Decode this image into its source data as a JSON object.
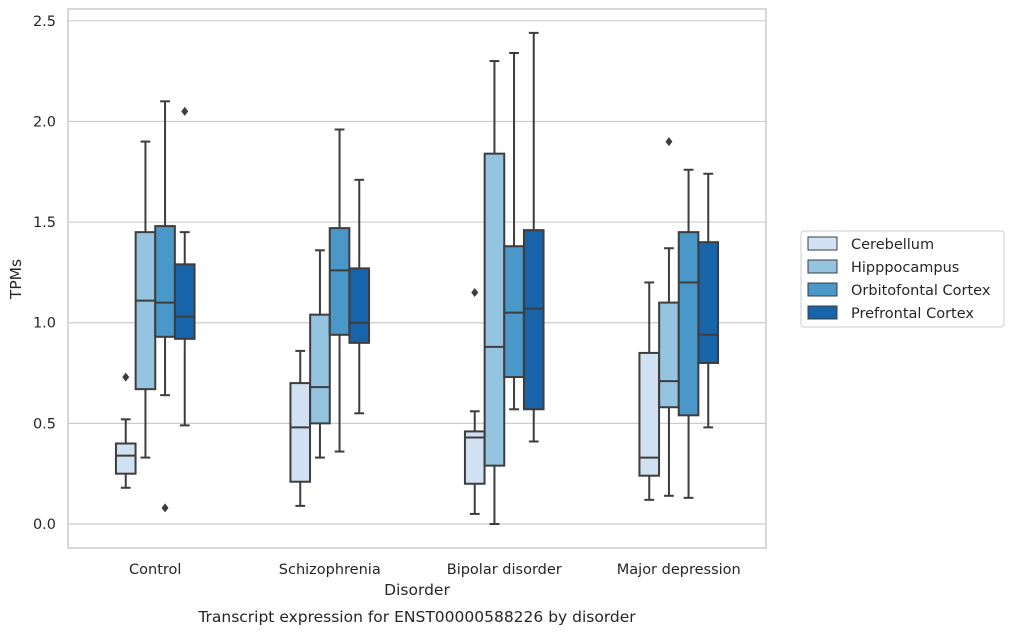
{
  "chart_data": {
    "type": "box",
    "title": "",
    "caption": "Transcript expression for ENST00000588226 by disorder",
    "xlabel": "Disorder",
    "ylabel": "TPMs",
    "ylim": [
      -0.12,
      2.56
    ],
    "yticks": [
      "0.0",
      "0.5",
      "1.0",
      "1.5",
      "2.0",
      "2.5"
    ],
    "grid": true,
    "legend_position": "right",
    "categories": [
      "Control",
      "Schizophrenia",
      "Bipolar disorder",
      "Major depression"
    ],
    "series": [
      {
        "name": "Cerebellum",
        "color": "#d0e1f2",
        "boxes": [
          {
            "whislo": 0.18,
            "q1": 0.25,
            "med": 0.34,
            "q3": 0.4,
            "whishi": 0.52,
            "fliers": [
              0.73
            ]
          },
          {
            "whislo": 0.09,
            "q1": 0.21,
            "med": 0.48,
            "q3": 0.7,
            "whishi": 0.86,
            "fliers": []
          },
          {
            "whislo": 0.05,
            "q1": 0.2,
            "med": 0.43,
            "q3": 0.46,
            "whishi": 0.56,
            "fliers": [
              1.15
            ]
          },
          {
            "whislo": 0.12,
            "q1": 0.24,
            "med": 0.33,
            "q3": 0.85,
            "whishi": 1.2,
            "fliers": []
          }
        ]
      },
      {
        "name": "Hipppocampus",
        "color": "#94c4df",
        "boxes": [
          {
            "whislo": 0.33,
            "q1": 0.67,
            "med": 1.11,
            "q3": 1.45,
            "whishi": 1.9,
            "fliers": []
          },
          {
            "whislo": 0.33,
            "q1": 0.5,
            "med": 0.68,
            "q3": 1.04,
            "whishi": 1.36,
            "fliers": []
          },
          {
            "whislo": 0.0,
            "q1": 0.29,
            "med": 0.88,
            "q3": 1.84,
            "whishi": 2.3,
            "fliers": []
          },
          {
            "whislo": 0.14,
            "q1": 0.58,
            "med": 0.71,
            "q3": 1.1,
            "whishi": 1.37,
            "fliers": [
              1.9
            ]
          }
        ]
      },
      {
        "name": "Orbitofontal Cortex",
        "color": "#4a98c9",
        "boxes": [
          {
            "whislo": 0.64,
            "q1": 0.93,
            "med": 1.1,
            "q3": 1.48,
            "whishi": 2.1,
            "fliers": [
              0.08
            ]
          },
          {
            "whislo": 0.36,
            "q1": 0.94,
            "med": 1.26,
            "q3": 1.47,
            "whishi": 1.96,
            "fliers": []
          },
          {
            "whislo": 0.57,
            "q1": 0.73,
            "med": 1.05,
            "q3": 1.38,
            "whishi": 2.34,
            "fliers": []
          },
          {
            "whislo": 0.13,
            "q1": 0.54,
            "med": 1.2,
            "q3": 1.45,
            "whishi": 1.76,
            "fliers": []
          }
        ]
      },
      {
        "name": "Prefrontal Cortex",
        "color": "#1764ab",
        "boxes": [
          {
            "whislo": 0.49,
            "q1": 0.92,
            "med": 1.03,
            "q3": 1.29,
            "whishi": 1.45,
            "fliers": [
              2.05
            ]
          },
          {
            "whislo": 0.55,
            "q1": 0.9,
            "med": 1.0,
            "q3": 1.27,
            "whishi": 1.71,
            "fliers": []
          },
          {
            "whislo": 0.41,
            "q1": 0.57,
            "med": 1.07,
            "q3": 1.46,
            "whishi": 2.44,
            "fliers": []
          },
          {
            "whislo": 0.48,
            "q1": 0.8,
            "med": 0.94,
            "q3": 1.4,
            "whishi": 1.74,
            "fliers": []
          }
        ]
      }
    ]
  }
}
